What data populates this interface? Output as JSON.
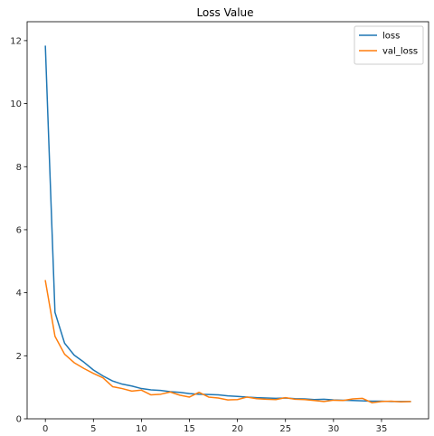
{
  "chart_data": {
    "type": "line",
    "title": "Loss Value",
    "xlabel": "",
    "ylabel": "",
    "xlim": [
      -1.9,
      39.9
    ],
    "ylim": [
      0,
      12.6
    ],
    "xticks": [
      0,
      5,
      10,
      15,
      20,
      25,
      30,
      35
    ],
    "yticks": [
      0,
      2,
      4,
      6,
      8,
      10,
      12
    ],
    "grid": false,
    "legend_position": "top-right",
    "x": [
      0,
      1,
      2,
      3,
      4,
      5,
      6,
      7,
      8,
      9,
      10,
      11,
      12,
      13,
      14,
      15,
      16,
      17,
      18,
      19,
      20,
      21,
      22,
      23,
      24,
      25,
      26,
      27,
      28,
      29,
      30,
      31,
      32,
      33,
      34,
      35,
      36,
      37,
      38
    ],
    "series": [
      {
        "name": "loss",
        "color": "#1f77b4",
        "values": [
          11.82,
          3.38,
          2.4,
          2.02,
          1.8,
          1.55,
          1.36,
          1.2,
          1.1,
          1.04,
          0.96,
          0.92,
          0.9,
          0.86,
          0.84,
          0.8,
          0.78,
          0.77,
          0.76,
          0.73,
          0.71,
          0.69,
          0.67,
          0.66,
          0.65,
          0.66,
          0.64,
          0.63,
          0.61,
          0.62,
          0.6,
          0.59,
          0.58,
          0.57,
          0.56,
          0.56,
          0.55,
          0.55,
          0.55
        ]
      },
      {
        "name": "val_loss",
        "color": "#ff7f0e",
        "values": [
          4.38,
          2.62,
          2.05,
          1.78,
          1.6,
          1.44,
          1.3,
          1.02,
          0.96,
          0.88,
          0.91,
          0.76,
          0.78,
          0.85,
          0.75,
          0.69,
          0.84,
          0.69,
          0.66,
          0.6,
          0.61,
          0.69,
          0.64,
          0.62,
          0.61,
          0.67,
          0.62,
          0.61,
          0.58,
          0.55,
          0.59,
          0.58,
          0.63,
          0.65,
          0.51,
          0.55,
          0.56,
          0.54,
          0.55
        ]
      }
    ]
  }
}
